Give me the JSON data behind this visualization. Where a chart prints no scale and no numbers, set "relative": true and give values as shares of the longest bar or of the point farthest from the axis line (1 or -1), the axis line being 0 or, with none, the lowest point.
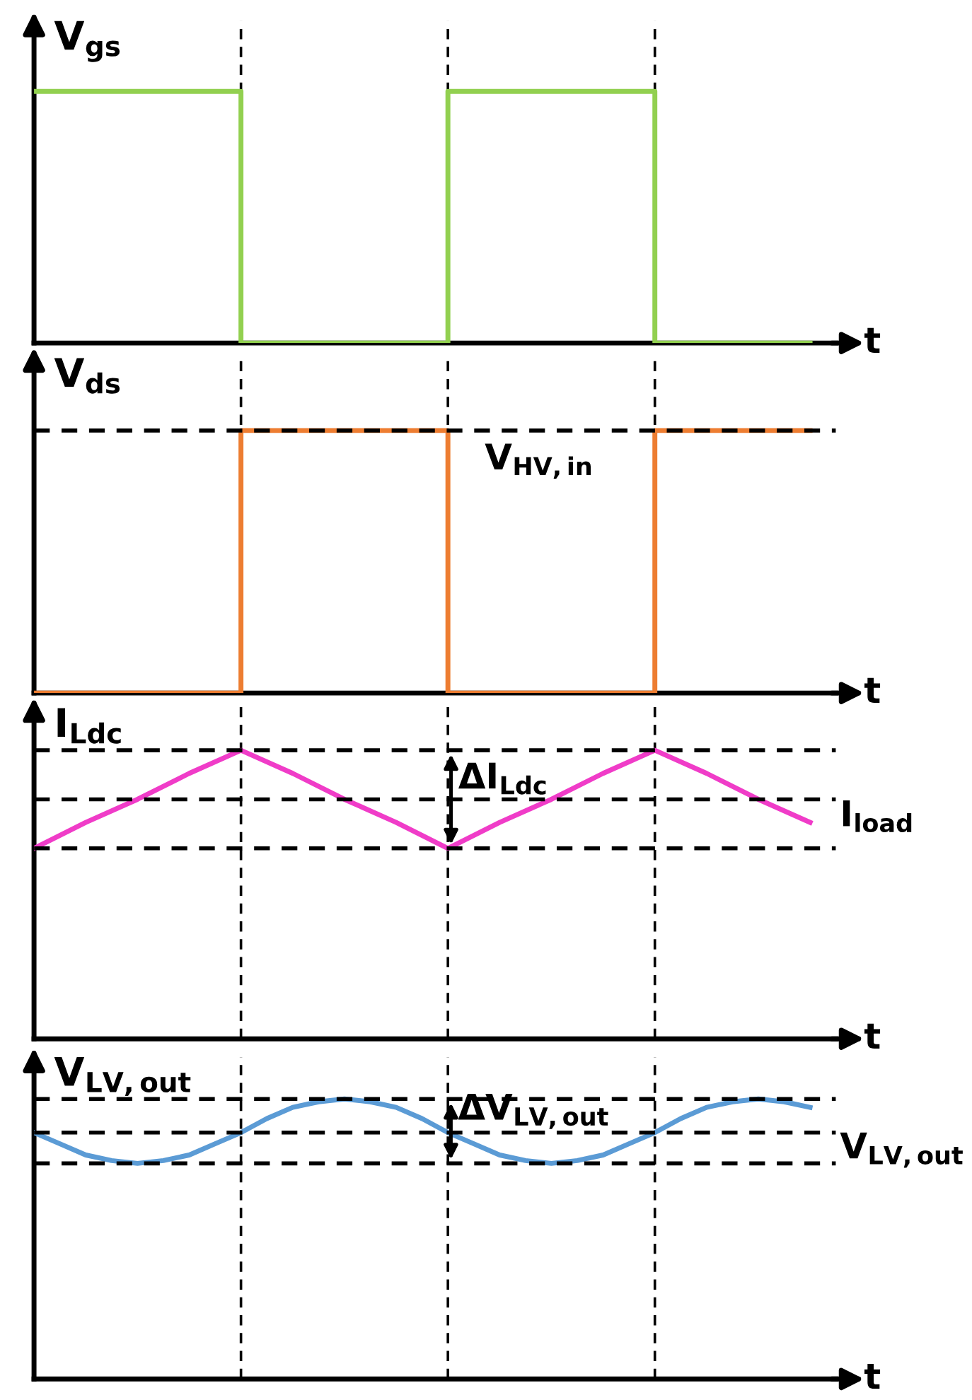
{
  "chart_data": [
    {
      "type": "step",
      "relative": true,
      "ylabel": "V$_{gs}$",
      "xlabel": "t",
      "categories": [
        null,
        null,
        null,
        null,
        null,
        null,
        null,
        null,
        null,
        null,
        null,
        null,
        null,
        null,
        null,
        null
      ],
      "series": [
        {
          "color": "#92d050",
          "values": [
            1,
            1,
            1,
            1,
            0,
            0,
            0,
            0,
            1,
            1,
            1,
            1,
            0,
            0,
            0,
            0
          ]
        }
      ],
      "grid": "x",
      "legend": false
    },
    {
      "type": "step",
      "relative": true,
      "ylabel": "V$_{ds}$",
      "xlabel": "t",
      "categories": [
        null,
        null,
        null,
        null,
        null,
        null,
        null,
        null,
        null,
        null,
        null,
        null,
        null,
        null,
        null,
        null
      ],
      "series": [
        {
          "color": "#ed7d31",
          "values": [
            0,
            0,
            0,
            0,
            1,
            1,
            1,
            1,
            0,
            0,
            0,
            0,
            1,
            1,
            1,
            1
          ]
        }
      ],
      "ref_lines": [
        {
          "axis": "y",
          "value": 1,
          "label": "V$_{HV,in}$",
          "line_style": "dashed",
          "color": "#000000"
        }
      ],
      "grid": "x",
      "legend": false
    },
    {
      "type": "line",
      "relative": true,
      "ylabel": "I$_{Ldc}$",
      "xlabel": "t",
      "categories": [
        null,
        null,
        null,
        null,
        null,
        null,
        null,
        null,
        null,
        null,
        null,
        null,
        null,
        null,
        null,
        null
      ],
      "series": [
        {
          "color": "#f03cc8",
          "values": [
            0.66,
            0.75,
            0.83,
            0.92,
            1,
            0.92,
            0.83,
            0.75,
            0.66,
            0.75,
            0.83,
            0.92,
            1,
            0.92,
            0.83,
            0.75
          ]
        }
      ],
      "ref_lines": [
        {
          "axis": "y",
          "value": 1,
          "line_style": "dashed",
          "color": "#000000"
        },
        {
          "axis": "y",
          "value": 0.83,
          "label": "I$_{load}$",
          "line_style": "dashed",
          "color": "#000000"
        },
        {
          "axis": "y",
          "value": 0.66,
          "line_style": "dashed",
          "color": "#000000"
        }
      ],
      "annotations": [
        "ΔI$_{Ldc}$"
      ],
      "grid": "x",
      "legend": false
    },
    {
      "type": "line",
      "relative": true,
      "ylabel": "V$_{LV,out}$",
      "xlabel": "t",
      "categories": [
        null,
        null,
        null,
        null,
        null,
        null,
        null,
        null,
        null,
        null,
        null,
        null,
        null,
        null,
        null,
        null,
        null,
        null,
        null,
        null,
        null,
        null,
        null,
        null,
        null,
        null,
        null,
        null,
        null,
        null,
        null
      ],
      "series": [
        {
          "color": "#5b9bd5",
          "values": [
            0.88,
            0.84,
            0.8,
            0.78,
            0.77,
            0.78,
            0.8,
            0.84,
            0.88,
            0.93,
            0.97,
            0.99,
            1,
            0.99,
            0.97,
            0.93,
            0.88,
            0.84,
            0.8,
            0.78,
            0.77,
            0.78,
            0.8,
            0.84,
            0.88,
            0.93,
            0.97,
            0.99,
            1,
            0.99,
            0.97
          ]
        }
      ],
      "ref_lines": [
        {
          "axis": "y",
          "value": 1,
          "line_style": "dashed",
          "color": "#000000"
        },
        {
          "axis": "y",
          "value": 0.88,
          "label": "V$_{LV,out}$",
          "line_style": "dashed",
          "color": "#000000"
        },
        {
          "axis": "y",
          "value": 0.77,
          "line_style": "dashed",
          "color": "#000000"
        }
      ],
      "annotations": [
        "ΔV$_{LV,out}$"
      ],
      "grid": "x",
      "legend": false
    }
  ]
}
